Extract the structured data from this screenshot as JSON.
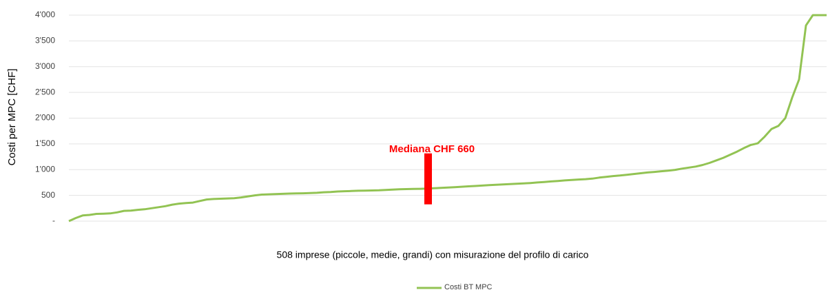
{
  "chart_data": {
    "type": "line",
    "y_label": "Costi per MPC [CHF]",
    "x_label": "508 imprese (piccole, medie, grandi) con misurazione del profilo di carico",
    "annotation": {
      "label": "Mediana CHF 660",
      "value": 660,
      "color": "#ff0000"
    },
    "ylim": [
      0,
      4000
    ],
    "yticks": [
      {
        "value": 0,
        "label": "-"
      },
      500,
      {
        "value": 1000,
        "label": "1'000"
      },
      {
        "value": 1500,
        "label": "1'500"
      },
      {
        "value": 2000,
        "label": "2'000"
      },
      {
        "value": 2500,
        "label": "2'500"
      },
      {
        "value": 3000,
        "label": "3'000"
      },
      {
        "value": 3500,
        "label": "3'500"
      },
      {
        "value": 4000,
        "label": "4'000"
      }
    ],
    "grid": true,
    "series": [
      {
        "name": "Costi BT MPC",
        "color": "#92c353",
        "values": [
          0,
          60,
          110,
          120,
          140,
          145,
          150,
          170,
          200,
          205,
          220,
          230,
          250,
          270,
          290,
          320,
          340,
          350,
          360,
          390,
          420,
          430,
          435,
          440,
          445,
          460,
          480,
          500,
          515,
          520,
          525,
          530,
          535,
          538,
          540,
          545,
          550,
          560,
          565,
          575,
          580,
          585,
          590,
          592,
          595,
          598,
          605,
          612,
          618,
          622,
          626,
          628,
          632,
          640,
          645,
          652,
          660,
          668,
          675,
          682,
          690,
          698,
          705,
          712,
          718,
          725,
          732,
          740,
          750,
          760,
          770,
          780,
          790,
          800,
          808,
          815,
          825,
          845,
          860,
          875,
          885,
          900,
          915,
          930,
          945,
          955,
          968,
          980,
          995,
          1020,
          1040,
          1060,
          1090,
          1130,
          1180,
          1230,
          1290,
          1350,
          1420,
          1480,
          1510,
          1640,
          1790,
          1850,
          2000,
          2400,
          2750,
          3800,
          4000,
          4000,
          4000
        ]
      }
    ]
  }
}
